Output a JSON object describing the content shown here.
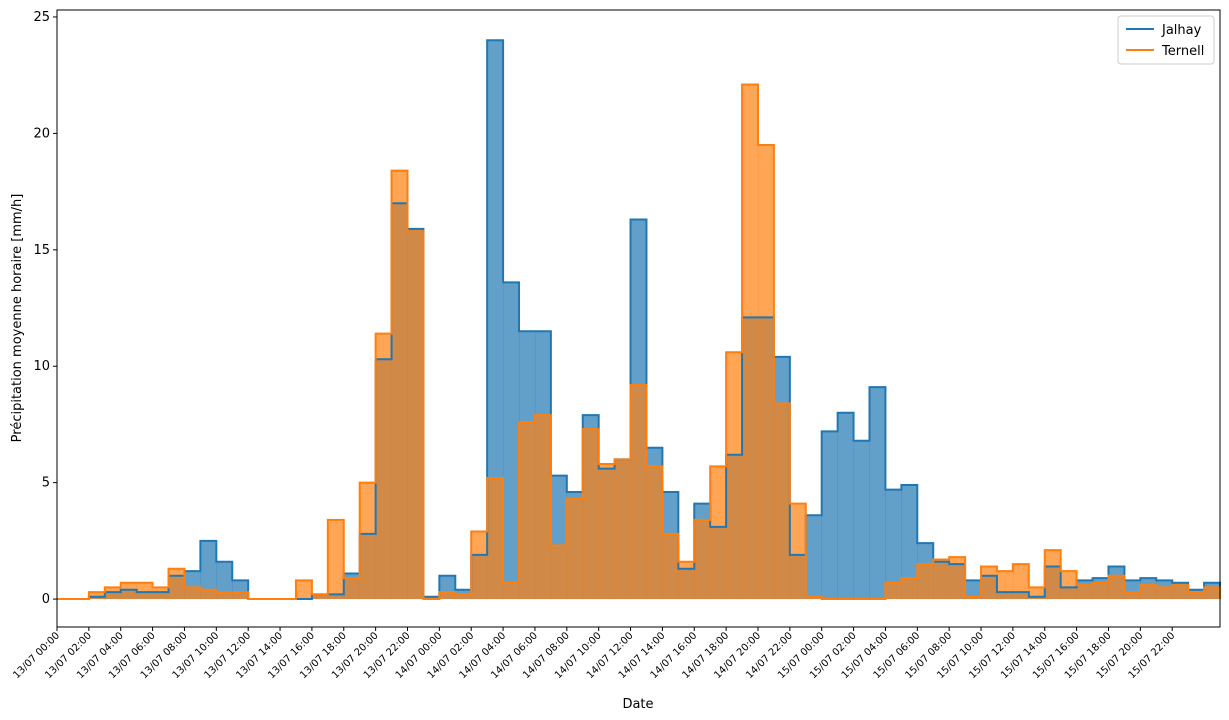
{
  "chart_data": {
    "type": "area",
    "xlabel": "Date",
    "ylabel": "Précipitation moyenne horaire [mm/h]",
    "ylim": [
      -1.2,
      25.3
    ],
    "yticks": [
      0,
      5,
      10,
      15,
      20,
      25
    ],
    "x_start": "13/07 00:00",
    "x_step_hours": 1,
    "x_tick_labels": [
      "13/07 00:00",
      "13/07 02:00",
      "13/07 04:00",
      "13/07 06:00",
      "13/07 08:00",
      "13/07 10:00",
      "13/07 12:00",
      "13/07 14:00",
      "13/07 16:00",
      "13/07 18:00",
      "13/07 20:00",
      "13/07 22:00",
      "14/07 00:00",
      "14/07 02:00",
      "14/07 04:00",
      "14/07 06:00",
      "14/07 08:00",
      "14/07 10:00",
      "14/07 12:00",
      "14/07 14:00",
      "14/07 16:00",
      "14/07 18:00",
      "14/07 20:00",
      "14/07 22:00",
      "15/07 00:00",
      "15/07 02:00",
      "15/07 04:00",
      "15/07 06:00",
      "15/07 08:00",
      "15/07 10:00",
      "15/07 12:00",
      "15/07 14:00",
      "15/07 16:00",
      "15/07 18:00",
      "15/07 20:00",
      "15/07 22:00"
    ],
    "legend_position": "top-right",
    "grid": false,
    "series": [
      {
        "name": "Jalhay",
        "color": "#1f77b4",
        "values": [
          0,
          0,
          0.1,
          0.3,
          0.4,
          0.3,
          0.3,
          1.0,
          1.2,
          2.5,
          1.6,
          0.8,
          0,
          0,
          0,
          0,
          0.2,
          0.2,
          1.1,
          2.8,
          10.3,
          17.0,
          15.9,
          0.1,
          1.0,
          0.4,
          1.9,
          24.0,
          13.6,
          11.5,
          11.5,
          5.3,
          4.6,
          7.9,
          5.6,
          6.0,
          16.3,
          6.5,
          4.6,
          1.3,
          4.1,
          3.1,
          6.2,
          12.1,
          12.1,
          10.4,
          1.9,
          3.6,
          7.2,
          8.0,
          6.8,
          9.1,
          4.7,
          4.9,
          2.4,
          1.6,
          1.5,
          0.8,
          1.0,
          0.3,
          0.3,
          0.1,
          1.4,
          0.5,
          0.8,
          0.9,
          1.4,
          0.8,
          0.9,
          0.8,
          0.7,
          0.4,
          0.7
        ]
      },
      {
        "name": "Ternell",
        "color": "#ff7f0e",
        "values": [
          0,
          0,
          0.3,
          0.5,
          0.7,
          0.7,
          0.5,
          1.3,
          0.5,
          0.4,
          0.3,
          0.3,
          0,
          0,
          0,
          0.8,
          0.2,
          3.4,
          0.9,
          5.0,
          11.4,
          18.4,
          15.8,
          0,
          0.3,
          0.2,
          2.9,
          5.2,
          0.7,
          7.6,
          7.9,
          2.3,
          4.3,
          7.3,
          5.8,
          6.0,
          9.2,
          5.7,
          2.8,
          1.6,
          3.4,
          5.7,
          10.6,
          22.1,
          19.5,
          8.4,
          4.1,
          0.1,
          0,
          0,
          0,
          0,
          0.7,
          0.9,
          1.5,
          1.7,
          1.8,
          0.1,
          1.4,
          1.2,
          1.5,
          0.5,
          2.1,
          1.2,
          0.6,
          0.7,
          1.0,
          0.3,
          0.6,
          0.5,
          0.6,
          0.3,
          0.5
        ]
      }
    ]
  }
}
